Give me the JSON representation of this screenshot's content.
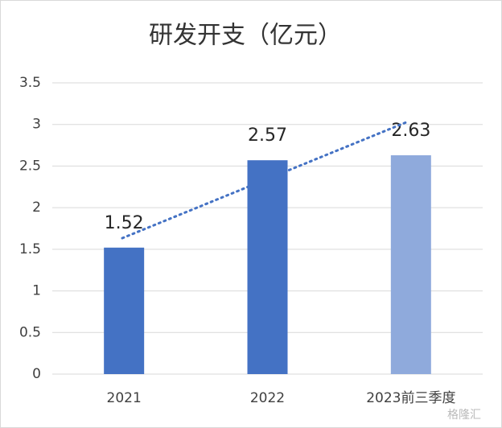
{
  "chart_data": {
    "type": "bar",
    "title": "研发开支（亿元）",
    "categories": [
      "2021",
      "2022",
      "2023前三季度"
    ],
    "values": [
      1.52,
      2.57,
      2.63
    ],
    "colors": [
      "#4472c4",
      "#4472c4",
      "#8faadc"
    ],
    "ylim": [
      0,
      3.5
    ],
    "yticks": [
      0,
      {
        "value": 0.5,
        "label": "0.5"
      },
      1,
      {
        "value": 1.5,
        "label": "1.5"
      },
      2,
      {
        "value": 2.5,
        "label": "2.5"
      },
      3,
      {
        "value": 3.5,
        "label": "3.5"
      }
    ],
    "grid": true,
    "watermark": "格隆汇"
  }
}
